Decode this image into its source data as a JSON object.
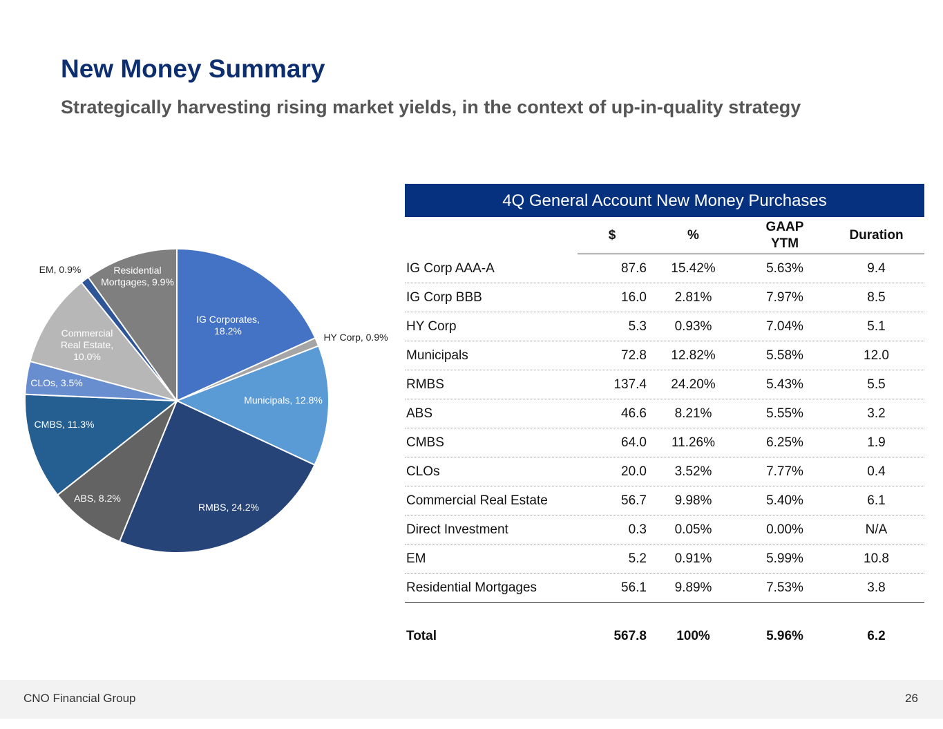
{
  "header": {
    "title": "New Money Summary",
    "subtitle": "Strategically harvesting rising market yields, in the context of up-in-quality strategy"
  },
  "chart_data": {
    "type": "pie",
    "title": "",
    "slices": [
      {
        "name": "IG Corporates",
        "label_lines": [
          "IG Corporates,",
          "18.2%"
        ],
        "value": 18.2,
        "color": "#4472c4",
        "label_color": "#ffffff"
      },
      {
        "name": "HY Corp",
        "label_lines": [
          "HY Corp, 0.9%"
        ],
        "value": 0.9,
        "color": "#a5a5a5",
        "label_color": "#222222"
      },
      {
        "name": "Municipals",
        "label_lines": [
          "Municipals, 12.8%"
        ],
        "value": 12.8,
        "color": "#5b9bd5",
        "label_color": "#ffffff"
      },
      {
        "name": "RMBS",
        "label_lines": [
          "RMBS, 24.2%"
        ],
        "value": 24.2,
        "color": "#264478",
        "label_color": "#ffffff"
      },
      {
        "name": "ABS",
        "label_lines": [
          "ABS, 8.2%"
        ],
        "value": 8.2,
        "color": "#636363",
        "label_color": "#ffffff"
      },
      {
        "name": "CMBS",
        "label_lines": [
          "CMBS, 11.3%"
        ],
        "value": 11.3,
        "color": "#255e91",
        "label_color": "#ffffff"
      },
      {
        "name": "CLOs",
        "label_lines": [
          "CLOs, 3.5%"
        ],
        "value": 3.5,
        "color": "#698ed0",
        "label_color": "#ffffff"
      },
      {
        "name": "Commercial Real Estate",
        "label_lines": [
          "Commercial",
          "Real Estate,",
          "10.0%"
        ],
        "value": 10.0,
        "color": "#b7b7b7",
        "label_color": "#ffffff"
      },
      {
        "name": "EM",
        "label_lines": [
          "EM, 0.9%"
        ],
        "value": 0.9,
        "color": "#2e5597",
        "label_color": "#222222"
      },
      {
        "name": "Residential Mortgages",
        "label_lines": [
          "Residential",
          "Mortgages, 9.9%"
        ],
        "value": 9.9,
        "color": "#7f7f7f",
        "label_color": "#ffffff"
      }
    ]
  },
  "table": {
    "header": "4Q General Account New Money Purchases",
    "columns": {
      "dollar": "$",
      "percent": "%",
      "yield_line1": "GAAP",
      "yield_line2": "YTM",
      "duration": "Duration"
    },
    "rows": [
      {
        "name": "IG Corp AAA-A",
        "dollar": "87.6",
        "percent": "15.42%",
        "yield": "5.63%",
        "duration": "9.4"
      },
      {
        "name": "IG Corp BBB",
        "dollar": "16.0",
        "percent": "2.81%",
        "yield": "7.97%",
        "duration": "8.5"
      },
      {
        "name": "HY Corp",
        "dollar": "5.3",
        "percent": "0.93%",
        "yield": "7.04%",
        "duration": "5.1"
      },
      {
        "name": "Municipals",
        "dollar": "72.8",
        "percent": "12.82%",
        "yield": "5.58%",
        "duration": "12.0"
      },
      {
        "name": "RMBS",
        "dollar": "137.4",
        "percent": "24.20%",
        "yield": "5.43%",
        "duration": "5.5"
      },
      {
        "name": "ABS",
        "dollar": "46.6",
        "percent": "8.21%",
        "yield": "5.55%",
        "duration": "3.2"
      },
      {
        "name": "CMBS",
        "dollar": "64.0",
        "percent": "11.26%",
        "yield": "6.25%",
        "duration": "1.9"
      },
      {
        "name": "CLOs",
        "dollar": "20.0",
        "percent": "3.52%",
        "yield": "7.77%",
        "duration": "0.4"
      },
      {
        "name": "Commercial Real Estate",
        "dollar": "56.7",
        "percent": "9.98%",
        "yield": "5.40%",
        "duration": "6.1"
      },
      {
        "name": "Direct Investment",
        "dollar": "0.3",
        "percent": "0.05%",
        "yield": "0.00%",
        "duration": "N/A"
      },
      {
        "name": "EM",
        "dollar": "5.2",
        "percent": "0.91%",
        "yield": "5.99%",
        "duration": "10.8"
      },
      {
        "name": "Residential Mortgages",
        "dollar": "56.1",
        "percent": "9.89%",
        "yield": "7.53%",
        "duration": "3.8"
      }
    ],
    "total": {
      "name": "Total",
      "dollar": "567.8",
      "percent": "100%",
      "yield": "5.96%",
      "duration": "6.2"
    }
  },
  "footer": {
    "company": "CNO Financial Group",
    "page_number": "26"
  }
}
